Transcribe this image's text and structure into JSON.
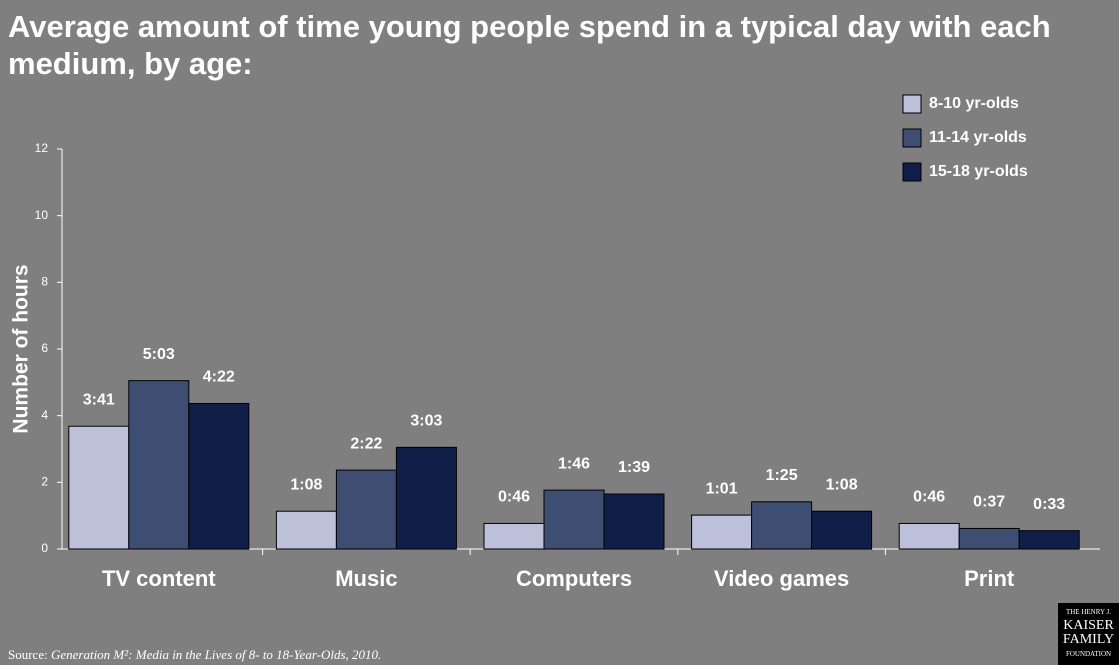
{
  "chart_data": {
    "type": "bar",
    "title": "Average amount of time young people spend in a typical day with each medium, by age:",
    "y_label": "Number of hours",
    "categories": [
      "TV content",
      "Music",
      "Computers",
      "Video games",
      "Print"
    ],
    "series": [
      {
        "name": "8-10 yr-olds",
        "color": "#bcc0d8",
        "values": [
          3.6833,
          1.1333,
          0.7667,
          1.0167,
          0.7667
        ],
        "value_labels": [
          "3:41",
          "1:08",
          "0:46",
          "1:01",
          "0:46"
        ]
      },
      {
        "name": "11-14 yr-olds",
        "color": "#3e4d72",
        "values": [
          5.05,
          2.3667,
          1.7667,
          1.4167,
          0.6167
        ],
        "value_labels": [
          "5:03",
          "2:22",
          "1:46",
          "1:25",
          "0:37"
        ]
      },
      {
        "name": "15-18 yr-olds",
        "color": "#0f1f47",
        "values": [
          4.3667,
          3.05,
          1.65,
          1.1333,
          0.55
        ],
        "value_labels": [
          "4:22",
          "3:03",
          "1:39",
          "1:08",
          "0:33"
        ]
      }
    ],
    "ylim": [
      0,
      12
    ],
    "yticks": [
      0,
      2,
      4,
      6,
      8,
      10,
      12
    ],
    "grid": false,
    "legend": "upper right",
    "source_prefix": "Source:",
    "source": "Generation M²: Media in the Lives of 8- to 18-Year-Olds, 2010.",
    "logo": [
      "THE HENRY J.",
      "KAISER",
      "FAMILY",
      "FOUNDATION"
    ]
  }
}
